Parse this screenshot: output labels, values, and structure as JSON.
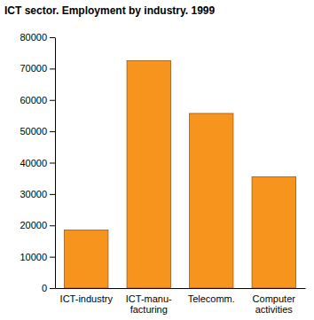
{
  "chart_data": {
    "type": "bar",
    "title": "ICT sector. Employment by industry. 1999",
    "categories": [
      "ICT-industry",
      "ICT-manu-\nfacturing",
      "Telecomm.",
      "Computer\nactivities"
    ],
    "values": [
      18500,
      72500,
      55700,
      35500
    ],
    "color": "#f7941d",
    "ylim": [
      0,
      80000
    ],
    "yticks": [
      0,
      10000,
      20000,
      30000,
      40000,
      50000,
      60000,
      70000,
      80000
    ],
    "grid": false
  }
}
